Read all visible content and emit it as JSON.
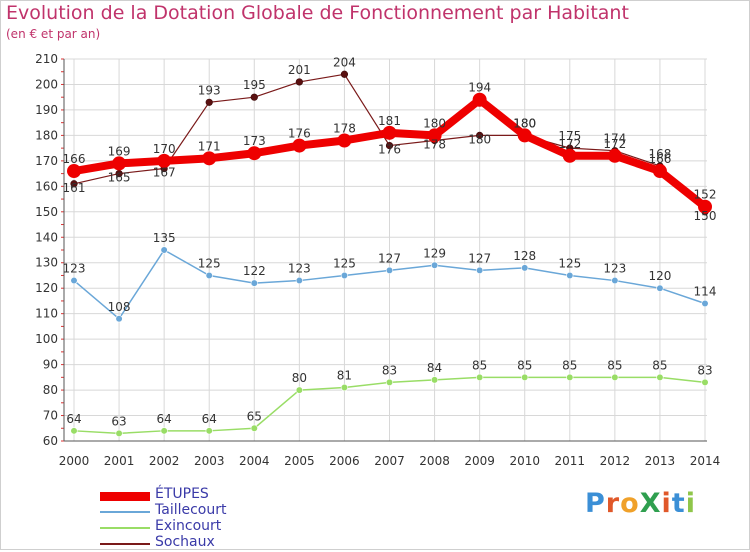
{
  "header": {
    "title": "Evolution de la Dotation Globale de Fonctionnement par Habitant",
    "subtitle": "(en € et par an)"
  },
  "logo": {
    "text": "ProXiti",
    "colors": [
      "#3b8fd6",
      "#e0582a",
      "#f0a12a",
      "#2f9f4f",
      "#e0582a",
      "#3b8fd6",
      "#8fc64a"
    ]
  },
  "chart_data": {
    "type": "line",
    "title": "Evolution de la Dotation Globale de Fonctionnement par Habitant",
    "subtitle": "(en € et par an)",
    "xlabel": "",
    "ylabel": "",
    "x": [
      2000,
      2001,
      2002,
      2003,
      2004,
      2005,
      2006,
      2007,
      2008,
      2009,
      2010,
      2011,
      2012,
      2013,
      2014
    ],
    "x_tick_labels": [
      "2000",
      "2001",
      "2002",
      "2003",
      "2004",
      "2005",
      "2006",
      "2007",
      "2008",
      "2009",
      "2010",
      "2011",
      "2012",
      "2013",
      "2014"
    ],
    "ylim": [
      60,
      210
    ],
    "y_ticks": [
      60,
      70,
      80,
      90,
      100,
      110,
      120,
      130,
      140,
      150,
      160,
      170,
      180,
      190,
      200,
      210
    ],
    "grid": true,
    "legend_position": "bottom-left",
    "series": [
      {
        "name": "ÉTUPES",
        "color": "#ee0000",
        "width": 8,
        "values": [
          166,
          169,
          170,
          171,
          173,
          176,
          178,
          181,
          180,
          194,
          180,
          172,
          172,
          166,
          152
        ]
      },
      {
        "name": "Taillecourt",
        "color": "#6aa7d8",
        "width": 1.5,
        "values": [
          123,
          108,
          135,
          125,
          122,
          123,
          125,
          127,
          129,
          127,
          128,
          125,
          123,
          120,
          114
        ]
      },
      {
        "name": "Exincourt",
        "color": "#99dd66",
        "width": 1.5,
        "values": [
          64,
          63,
          64,
          64,
          65,
          80,
          81,
          83,
          84,
          85,
          85,
          85,
          85,
          85,
          83
        ]
      },
      {
        "name": "Sochaux",
        "color": "#7a1a1a",
        "width": 1.2,
        "values": [
          161,
          165,
          167,
          193,
          195,
          201,
          204,
          176,
          178,
          180,
          180,
          175,
          174,
          168,
          150
        ]
      }
    ]
  }
}
